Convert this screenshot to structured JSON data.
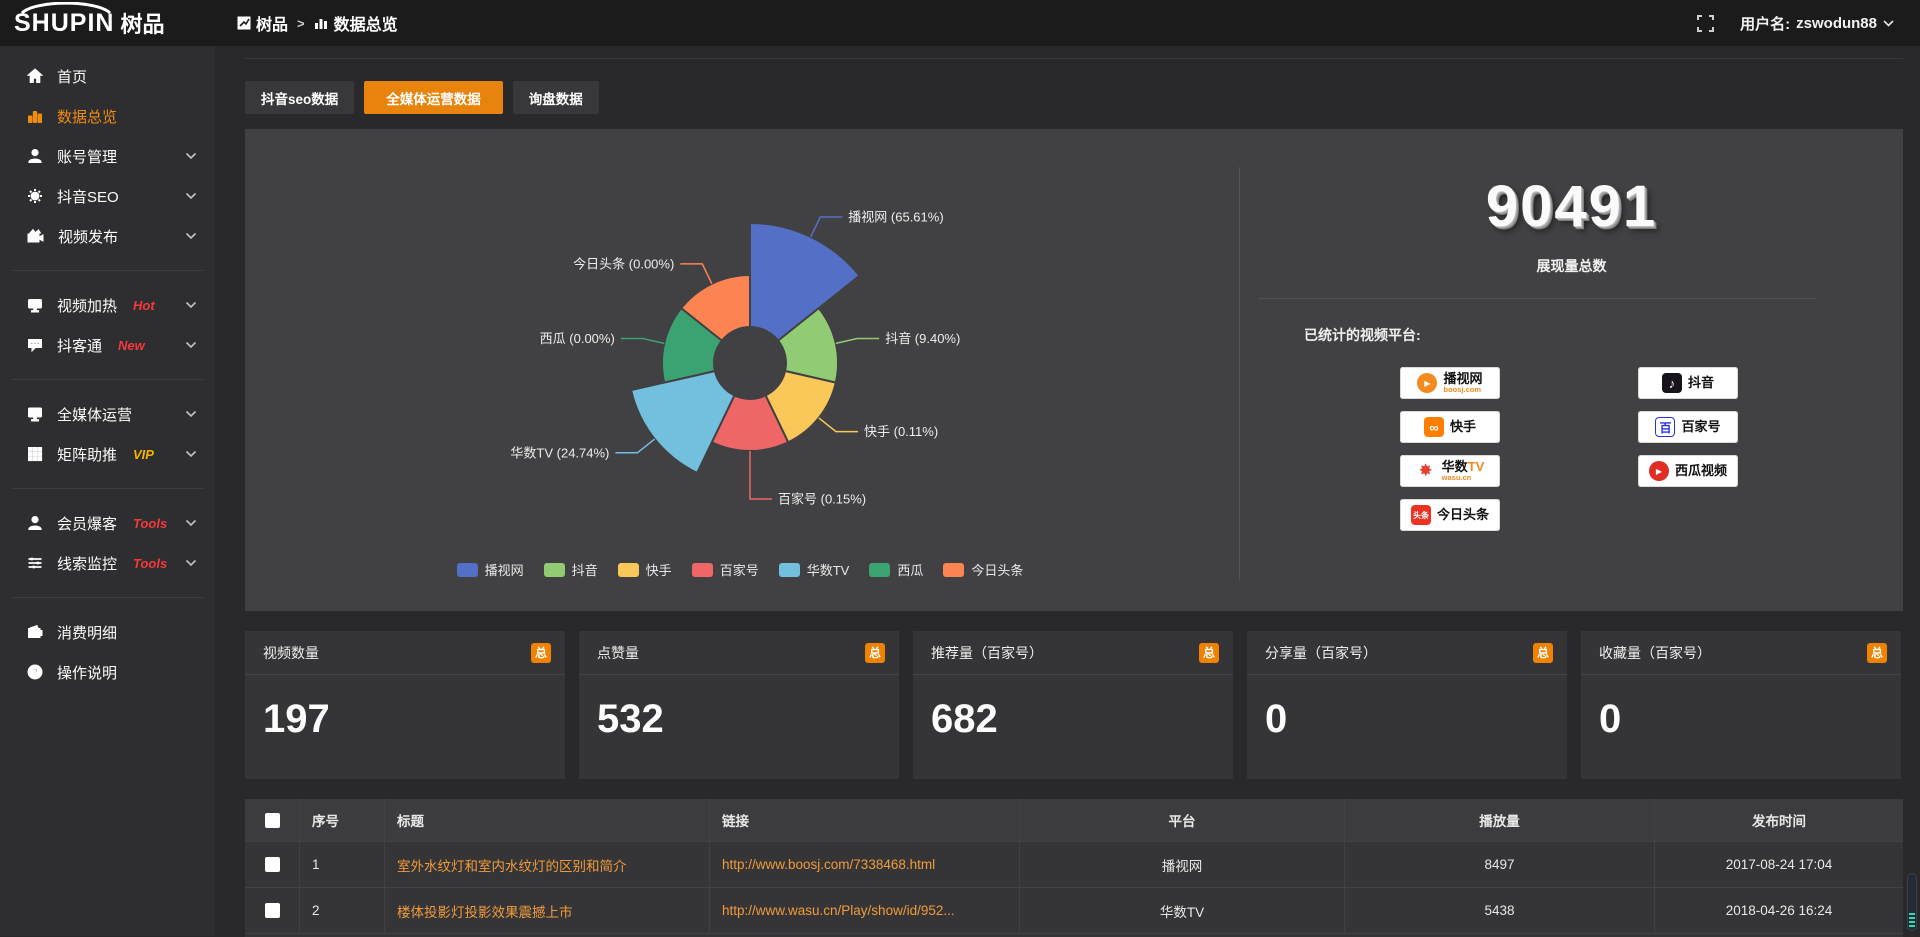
{
  "app": {
    "logo_en": "SHUPIN",
    "logo_cn": "树品",
    "breadcrumb": {
      "root": "树品",
      "separator": ">",
      "current": "数据总览"
    },
    "user": {
      "label": "用户名:",
      "name": "zswodun88"
    }
  },
  "sidebar": {
    "items": [
      {
        "label": "首页",
        "icon": "home-icon",
        "active": false,
        "chevron": false,
        "divider_after": false
      },
      {
        "label": "数据总览",
        "icon": "bar-chart-icon",
        "active": true,
        "chevron": false,
        "divider_after": false
      },
      {
        "label": "账号管理",
        "icon": "user-icon",
        "active": false,
        "chevron": true,
        "divider_after": false
      },
      {
        "label": "抖音SEO",
        "icon": "gear-icon",
        "active": false,
        "chevron": true,
        "divider_after": false
      },
      {
        "label": "视频发布",
        "icon": "video-publish-icon",
        "active": false,
        "chevron": true,
        "divider_after": true
      },
      {
        "label": "视频加热",
        "icon": "monitor-heat-icon",
        "badge": "Hot",
        "badge_color": "#f5383d",
        "active": false,
        "chevron": true,
        "divider_after": false
      },
      {
        "label": "抖客通",
        "icon": "chat-icon",
        "badge": "New",
        "badge_color": "#f5383d",
        "active": false,
        "chevron": true,
        "divider_after": true
      },
      {
        "label": "全媒体运营",
        "icon": "monitor-icon",
        "active": false,
        "chevron": true,
        "divider_after": false
      },
      {
        "label": "矩阵助推",
        "icon": "grid-icon",
        "badge": "VIP",
        "badge_color": "#f4b400",
        "active": false,
        "chevron": true,
        "divider_after": true
      },
      {
        "label": "会员爆客",
        "icon": "member-icon",
        "badge": "Tools",
        "badge_color": "#f5383d",
        "active": false,
        "chevron": true,
        "divider_after": false
      },
      {
        "label": "线索监控",
        "icon": "sliders-icon",
        "badge": "Tools",
        "badge_color": "#f5383d",
        "active": false,
        "chevron": true,
        "divider_after": true
      },
      {
        "label": "消费明细",
        "icon": "wallet-icon",
        "active": false,
        "chevron": false,
        "divider_after": false
      },
      {
        "label": "操作说明",
        "icon": "question-icon",
        "active": false,
        "chevron": false,
        "divider_after": false
      }
    ]
  },
  "tabs": [
    {
      "label": "抖音seo数据",
      "active": false
    },
    {
      "label": "全媒体运营数据",
      "active": true
    },
    {
      "label": "询盘数据",
      "active": false
    }
  ],
  "chart_data": {
    "type": "pie",
    "subtype": "nightingale-rose",
    "title": "",
    "categories": [
      "播视网",
      "抖音",
      "快手",
      "百家号",
      "华数TV",
      "西瓜",
      "今日头条"
    ],
    "values": [
      65.61,
      9.4,
      0.11,
      0.15,
      24.74,
      0.0,
      0.0
    ],
    "unit": "percent",
    "labels": [
      "播视网 (65.61%)",
      "抖音 (9.40%)",
      "快手 (0.11%)",
      "百家号 (0.15%)",
      "华数TV (24.74%)",
      "西瓜 (0.00%)",
      "今日头条 (0.00%)"
    ],
    "colors": [
      "#5470c6",
      "#91cc75",
      "#fac858",
      "#ee6666",
      "#73c0de",
      "#3ba272",
      "#fc8452"
    ],
    "display_radii": [
      140,
      88,
      88,
      88,
      122,
      88,
      88
    ],
    "inner_radius": 36,
    "legend_position": "bottom",
    "grid": false
  },
  "summary": {
    "total_value": "90491",
    "total_label": "展现量总数",
    "platforms_label": "已统计的视频平台:",
    "badges_left": [
      {
        "name": "播视网",
        "sub": "boosj.com",
        "icon": "boosj-play-icon",
        "icon_color": "#f28a1d",
        "icon_glyph": "▶",
        "icon_shape": "round"
      },
      {
        "name": "快手",
        "icon": "kuaishou-icon",
        "icon_color": "#ff7e00",
        "icon_glyph": "∞",
        "icon_shape": "square"
      },
      {
        "name": "华数",
        "name_accent": "TV",
        "sub": "wasu.cn",
        "icon": "wasu-star-icon",
        "icon_color": "#e43f2f",
        "icon_glyph": "✸",
        "icon_shape": "star"
      },
      {
        "name": "今日头条",
        "icon": "toutiao-icon",
        "icon_color": "#eb3323",
        "icon_glyph": "头条",
        "icon_shape": "square"
      }
    ],
    "badges_right": [
      {
        "name": "抖音",
        "icon": "douyin-note-icon",
        "icon_color": "#16131d",
        "icon_glyph": "♪",
        "icon_shape": "square"
      },
      {
        "name": "百家号",
        "icon": "baijiahao-icon",
        "icon_color": "#2932e1",
        "icon_glyph": "百",
        "icon_shape": "outline"
      },
      {
        "name": "西瓜视频",
        "icon": "xigua-play-icon",
        "icon_color": "#e02e24",
        "icon_glyph": "▶",
        "icon_shape": "round"
      }
    ]
  },
  "stat_cards": [
    {
      "title": "视频数量",
      "badge": "总",
      "value": "197"
    },
    {
      "title": "点赞量",
      "badge": "总",
      "value": "532"
    },
    {
      "title": "推荐量（百家号）",
      "badge": "总",
      "value": "682"
    },
    {
      "title": "分享量（百家号）",
      "badge": "总",
      "value": "0"
    },
    {
      "title": "收藏量（百家号）",
      "badge": "总",
      "value": "0"
    }
  ],
  "table": {
    "headers": [
      "序号",
      "标题",
      "链接",
      "平台",
      "播放量",
      "发布时间"
    ],
    "rows": [
      {
        "cells": [
          "1",
          "室外水纹灯和室内水纹灯的区别和简介",
          "http://www.boosj.com/7338468.html",
          "播视网",
          "8497",
          "2017-08-24 17:04"
        ]
      },
      {
        "cells": [
          "2",
          "楼体投影灯投影效果震撼上市",
          "http://www.wasu.cn/Play/show/id/952...",
          "华数TV",
          "5438",
          "2018-04-26 16:24"
        ]
      }
    ]
  }
}
